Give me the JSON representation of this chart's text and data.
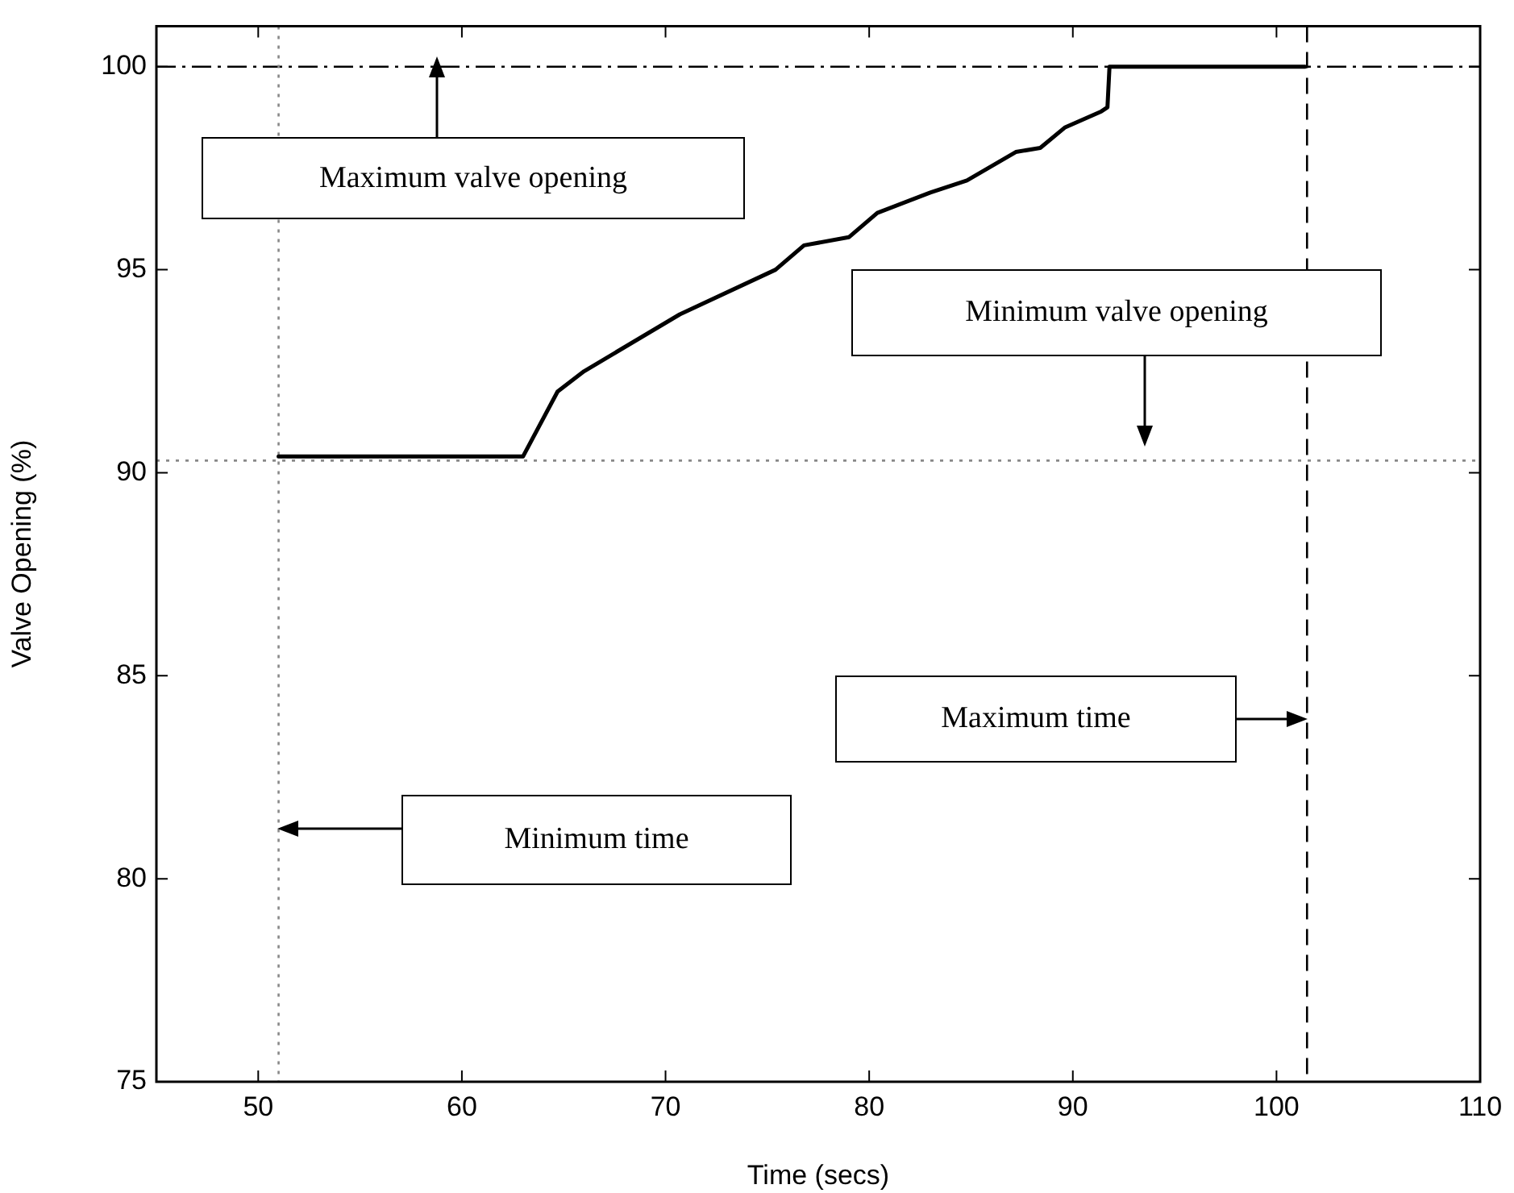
{
  "chart_data": {
    "type": "line",
    "xlabel": "Time (secs)",
    "ylabel": "Valve Opening (%)",
    "xlim": [
      45,
      110
    ],
    "xticks": [
      50,
      60,
      70,
      80,
      90,
      100,
      110
    ],
    "ylim": [
      75,
      101
    ],
    "yticks": [
      75,
      80,
      85,
      90,
      95,
      100
    ],
    "x": [
      51,
      63,
      64.7,
      66,
      70.7,
      75.4,
      76.8,
      79,
      80.4,
      83,
      84.8,
      87.2,
      88.4,
      89.6,
      91.4,
      91.7,
      91.8,
      101.4
    ],
    "series": [
      {
        "color": "#000000",
        "values": [
          90.4,
          90.4,
          92,
          92.5,
          93.9,
          95,
          95.6,
          95.8,
          96.4,
          96.9,
          97.2,
          97.9,
          98,
          98.5,
          98.9,
          99,
          100,
          100
        ]
      }
    ],
    "ref_lines": [
      {
        "axis": "y",
        "value": 100,
        "color": "#000000",
        "line_style": "dashdot"
      },
      {
        "axis": "y",
        "value": 90.3,
        "color": "#888888",
        "line_style": "dotted"
      },
      {
        "axis": "x",
        "value": 51,
        "color": "#888888",
        "line_style": "dotted"
      },
      {
        "axis": "x",
        "value": 101.5,
        "color": "#000000",
        "line_style": "dashed"
      }
    ],
    "annotations": [
      "Maximum valve opening",
      "Minimum valve opening",
      "Maximum time",
      "Minimum time"
    ],
    "grid": false,
    "legend": false,
    "marker": "none",
    "line_style": "solid"
  }
}
